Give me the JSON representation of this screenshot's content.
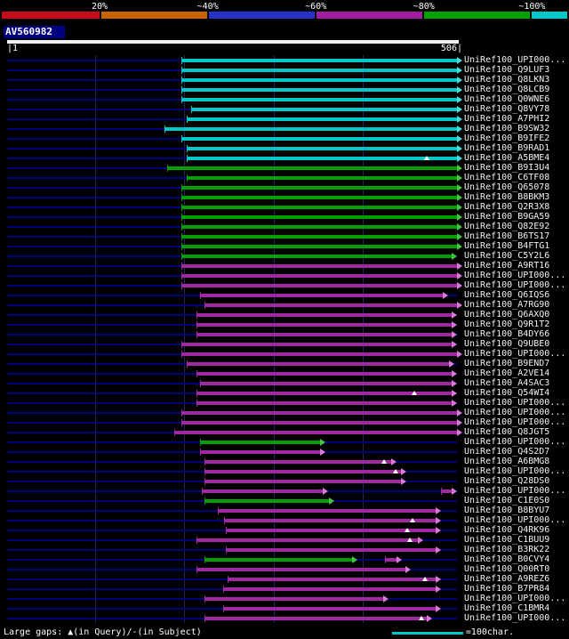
{
  "key": {
    "labels": [
      "20%",
      "~40%",
      "~60%",
      "~80%",
      "~100%"
    ],
    "colors": [
      "#c80a1e",
      "#c86400",
      "#2832c8",
      "#a01ea0",
      "#00a000",
      "#00c8c8"
    ],
    "boundaries_pct": [
      17.5,
      36.5,
      55.5,
      74.5,
      93.5
    ]
  },
  "query": {
    "name": "AV560982",
    "start_label": "|1",
    "end_label": "506|"
  },
  "footer": {
    "large_gaps_label": "Large gaps: ▲(in Query)/-(in Subject)",
    "scale_label": "=100char."
  },
  "chart_data": {
    "type": "bar",
    "title": "Sequence similarity overview for query AV560982 (1-506)",
    "legend": {
      "position": "top",
      "entries": [
        "20%",
        "~40%",
        "~60%",
        "~80%",
        "~100%"
      ],
      "color_meaning": {
        "cyan": "~100%",
        "green": "~80%",
        "purple": "~60%"
      }
    },
    "x_axis": {
      "min": 1,
      "max": 506,
      "gridlines": [
        100,
        200,
        300,
        400
      ]
    },
    "rows": [
      {
        "label": "UniRef100_UPI000...",
        "color": "cyan",
        "start": 197,
        "end": 506
      },
      {
        "label": "UniRef100_Q9LUF3",
        "color": "cyan",
        "start": 197,
        "end": 506
      },
      {
        "label": "UniRef100_Q8LKN3",
        "color": "cyan",
        "start": 197,
        "end": 506
      },
      {
        "label": "UniRef100_Q8LCB9",
        "color": "cyan",
        "start": 197,
        "end": 506
      },
      {
        "label": "UniRef100_Q0WNE6",
        "color": "cyan",
        "start": 197,
        "end": 506
      },
      {
        "label": "UniRef100_Q8VY78",
        "color": "cyan",
        "start": 208,
        "end": 506
      },
      {
        "label": "UniRef100_A7PHI2",
        "color": "cyan",
        "start": 203,
        "end": 506
      },
      {
        "label": "UniRef100_B9SW32",
        "color": "cyan",
        "start": 178,
        "end": 506
      },
      {
        "label": "UniRef100_B9IFE2",
        "color": "cyan",
        "start": 197,
        "end": 506
      },
      {
        "label": "UniRef100_B9RAD1",
        "color": "cyan",
        "start": 203,
        "end": 506
      },
      {
        "label": "UniRef100_A5BME4",
        "color": "cyan",
        "start": 203,
        "end": 506,
        "markers": [
          472
        ]
      },
      {
        "label": "UniRef100_B9I3U4",
        "color": "green",
        "start": 181,
        "end": 506
      },
      {
        "label": "UniRef100_C6TF08",
        "color": "green",
        "start": 203,
        "end": 506
      },
      {
        "label": "UniRef100_Q65078",
        "color": "green",
        "start": 197,
        "end": 506
      },
      {
        "label": "UniRef100_B8BKM3",
        "color": "green",
        "start": 197,
        "end": 506
      },
      {
        "label": "UniRef100_Q2R3X8",
        "color": "green",
        "start": 197,
        "end": 506
      },
      {
        "label": "UniRef100_B9GA59",
        "color": "green",
        "start": 197,
        "end": 506
      },
      {
        "label": "UniRef100_Q82E92",
        "color": "green",
        "start": 197,
        "end": 506
      },
      {
        "label": "UniRef100_B6TS17",
        "color": "green",
        "start": 197,
        "end": 506
      },
      {
        "label": "UniRef100_B4FTG1",
        "color": "green",
        "start": 197,
        "end": 506
      },
      {
        "label": "UniRef100_C5Y2L6",
        "color": "green",
        "start": 197,
        "end": 500
      },
      {
        "label": "UniRef100_A9RT16",
        "color": "purple",
        "start": 197,
        "end": 506
      },
      {
        "label": "UniRef100_UPI000...",
        "color": "purple",
        "start": 197,
        "end": 506
      },
      {
        "label": "UniRef100_UPI000...",
        "color": "purple",
        "start": 197,
        "end": 506
      },
      {
        "label": "UniRef100_Q6IQS6",
        "color": "purple",
        "start": 218,
        "end": 490
      },
      {
        "label": "UniRef100_A7RG90",
        "color": "purple",
        "start": 223,
        "end": 506
      },
      {
        "label": "UniRef100_Q6AXQ0",
        "color": "purple",
        "start": 214,
        "end": 500
      },
      {
        "label": "UniRef100_Q9R1T2",
        "color": "purple",
        "start": 214,
        "end": 500
      },
      {
        "label": "UniRef100_B4DY66",
        "color": "purple",
        "start": 214,
        "end": 500
      },
      {
        "label": "UniRef100_Q9UBE0",
        "color": "purple",
        "start": 197,
        "end": 500
      },
      {
        "label": "UniRef100_UPI000...",
        "color": "purple",
        "start": 197,
        "end": 506
      },
      {
        "label": "UniRef100_B9END7",
        "color": "purple",
        "start": 203,
        "end": 497
      },
      {
        "label": "UniRef100_A2VE14",
        "color": "purple",
        "start": 214,
        "end": 500
      },
      {
        "label": "UniRef100_A4SAC3",
        "color": "purple",
        "start": 218,
        "end": 500
      },
      {
        "label": "UniRef100_Q54WI4",
        "color": "purple",
        "start": 214,
        "end": 500,
        "markers": [
          458
        ]
      },
      {
        "label": "UniRef100_UPI000...",
        "color": "purple",
        "start": 214,
        "end": 500
      },
      {
        "label": "UniRef100_UPI000...",
        "color": "purple",
        "start": 197,
        "end": 506
      },
      {
        "label": "UniRef100_UPI000...",
        "color": "purple",
        "start": 197,
        "end": 506
      },
      {
        "label": "UniRef100_Q8JGT5",
        "color": "purple",
        "start": 189,
        "end": 506
      },
      {
        "label": "UniRef100_UPI000...",
        "color": "green",
        "start": 218,
        "end": 352
      },
      {
        "label": "UniRef100_Q4S2D7",
        "color": "purple",
        "start": 218,
        "end": 352
      },
      {
        "label": "UniRef100_A6BMG8",
        "color": "purple",
        "start": 223,
        "end": 432,
        "markers": [
          424
        ]
      },
      {
        "label": "UniRef100_UPI000...",
        "color": "purple",
        "start": 223,
        "end": 443,
        "markers": [
          437
        ]
      },
      {
        "label": "UniRef100_Q28DS0",
        "color": "purple",
        "start": 223,
        "end": 443
      },
      {
        "label": "UniRef100_UPI000...",
        "color": "purple",
        "start": 220,
        "end": 355,
        "extra": [
          {
            "color": "purple",
            "start": 488,
            "end": 500
          }
        ]
      },
      {
        "label": "UniRef100_C1E0S0",
        "color": "green",
        "start": 223,
        "end": 362
      },
      {
        "label": "UniRef100_B8BYU7",
        "color": "purple",
        "start": 238,
        "end": 482
      },
      {
        "label": "UniRef100_UPI000...",
        "color": "purple",
        "start": 245,
        "end": 482,
        "markers": [
          456
        ]
      },
      {
        "label": "UniRef100_Q4RK96",
        "color": "purple",
        "start": 247,
        "end": 482,
        "markers": [
          450
        ]
      },
      {
        "label": "UniRef100_C1BUU9",
        "color": "purple",
        "start": 214,
        "end": 462,
        "markers": [
          453
        ]
      },
      {
        "label": "UniRef100_B3RK22",
        "color": "purple",
        "start": 247,
        "end": 482
      },
      {
        "label": "UniRef100_B0CVY4",
        "color": "green",
        "start": 223,
        "end": 388,
        "extra": [
          {
            "color": "purple",
            "start": 425,
            "end": 438
          }
        ]
      },
      {
        "label": "UniRef100_Q00RT0",
        "color": "purple",
        "start": 214,
        "end": 448
      },
      {
        "label": "UniRef100_A9REZ6",
        "color": "purple",
        "start": 249,
        "end": 482,
        "markers": [
          470
        ]
      },
      {
        "label": "UniRef100_B7PR84",
        "color": "purple",
        "start": 244,
        "end": 482
      },
      {
        "label": "UniRef100_UPI000...",
        "color": "purple",
        "start": 223,
        "end": 423
      },
      {
        "label": "UniRef100_C1BMR4",
        "color": "purple",
        "start": 244,
        "end": 482
      },
      {
        "label": "UniRef100_UPI000...",
        "color": "purple",
        "start": 223,
        "end": 472,
        "markers": [
          466
        ]
      }
    ]
  }
}
